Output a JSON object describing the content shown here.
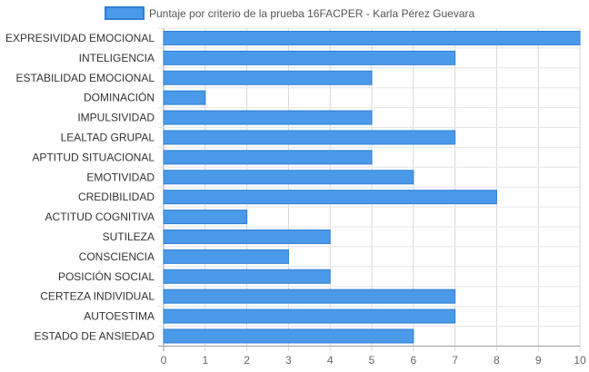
{
  "chart_data": {
    "type": "bar",
    "orientation": "horizontal",
    "categories": [
      "EXPRESIVIDAD EMOCIONAL",
      "INTELIGENCIA",
      "ESTABILIDAD EMOCIONAL",
      "DOMINACIÓN",
      "IMPULSIVIDAD",
      "LEALTAD GRUPAL",
      "APTITUD SITUACIONAL",
      "EMOTIVIDAD",
      "CREDIBILIDAD",
      "ACTITUD COGNITIVA",
      "SUTILEZA",
      "CONSCIENCIA",
      "POSICIÓN SOCIAL",
      "CERTEZA INDIVIDUAL",
      "AUTOESTIMA",
      "ESTADO DE ANSIEDAD"
    ],
    "series": [
      {
        "name": "Puntaje por criterio de la prueba 16FACPER - Karla Pérez Guevara",
        "values": [
          10,
          7,
          5,
          1,
          5,
          7,
          5,
          6,
          8,
          2,
          4,
          3,
          4,
          7,
          7,
          6
        ],
        "color": "#4a9ae9",
        "border_color": "#2f7fd4"
      }
    ],
    "xlim": [
      0,
      10
    ],
    "x_ticks": [
      "0",
      "1",
      "2",
      "3",
      "4",
      "5",
      "6",
      "7",
      "8",
      "9",
      "10"
    ],
    "grid": true,
    "legend_position": "top-center"
  }
}
